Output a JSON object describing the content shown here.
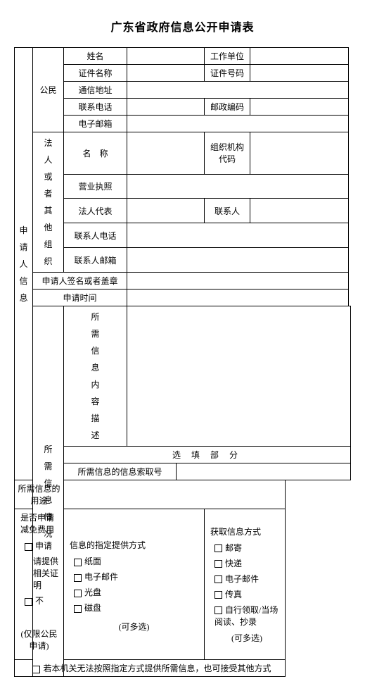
{
  "title": "广东省政府信息公开申请表",
  "applicant": {
    "section": "申请人信息",
    "citizen": {
      "label": "公民",
      "name": "姓名",
      "work_unit": "工作单位",
      "id_type": "证件名称",
      "id_number": "证件号码",
      "address": "通信地址",
      "phone": "联系电话",
      "zip": "邮政编码",
      "email": "电子邮箱"
    },
    "org": {
      "label": "法人或者其他组织",
      "name": "名　称",
      "org_code": "组织机构代码",
      "license": "营业执照",
      "rep": "法人代表",
      "contact": "联系人",
      "contact_phone": "联系人电话",
      "contact_email": "联系人邮箱"
    },
    "signature": "申请人签名或者盖章",
    "apply_date": "申请时间"
  },
  "request": {
    "section": "所需信息情况",
    "desc": "所需信息内容描述",
    "optional_header": "选 填 部 分",
    "index_no": "所需信息的信息索取号",
    "purpose": "所需信息的用途",
    "fee": {
      "label": "是否申请减免费用",
      "opt_apply": "申请",
      "note": "请提供相关证明",
      "opt_no": "不",
      "footer": "(仅限公民申请)"
    },
    "format": {
      "label": "信息的指定提供方式",
      "opt_paper": "纸面",
      "opt_email": "电子邮件",
      "opt_cd": "光盘",
      "opt_disk": "磁盘",
      "footer": "(可多选)"
    },
    "obtain": {
      "label": "获取信息方式",
      "opt_mail": "邮寄",
      "opt_express": "快递",
      "opt_email": "电子邮件",
      "opt_fax": "传真",
      "opt_self": "自行领取/当场阅读、抄录",
      "footer": "(可多选)"
    },
    "altnote": "若本机关无法按照指定方式提供所需信息，也可接受其他方式"
  }
}
